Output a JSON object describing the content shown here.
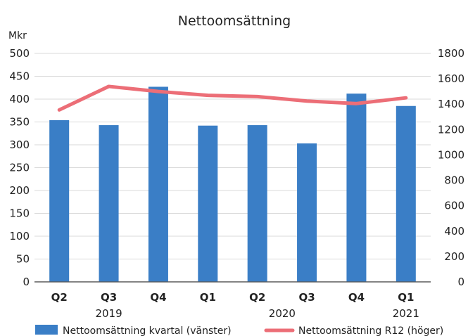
{
  "chart_data": {
    "type": "bar",
    "title": "Nettoomsättning",
    "ylabel_left": "Mkr",
    "categories": [
      "Q2",
      "Q3",
      "Q4",
      "Q1",
      "Q2",
      "Q3",
      "Q4",
      "Q1"
    ],
    "year_labels": [
      {
        "label": "2019",
        "category_index": 1
      },
      {
        "label": "2020",
        "category_index": 4.5
      },
      {
        "label": "2021",
        "category_index": 7
      }
    ],
    "ylim_left": [
      0,
      500
    ],
    "yticks_left": [
      "0",
      "50",
      "100",
      "150",
      "200",
      "250",
      "300",
      "350",
      "400",
      "450",
      "500"
    ],
    "ylim_right": [
      0,
      1800
    ],
    "yticks_right": [
      "0",
      "200",
      "400",
      "600",
      "800",
      "1000",
      "1200",
      "1400",
      "1600",
      "1800"
    ],
    "grid": true,
    "series": [
      {
        "name": "Nettoomsättning kvartal (vänster)",
        "type": "bar",
        "axis": "left",
        "color": "#3a7ec6",
        "values": [
          354,
          343,
          427,
          342,
          343,
          303,
          412,
          385
        ]
      },
      {
        "name": "Nettoomsättning R12 (höger)",
        "type": "line",
        "axis": "right",
        "color": "#ec6e77",
        "values": [
          1355,
          1540,
          1500,
          1470,
          1460,
          1425,
          1405,
          1450
        ]
      }
    ],
    "legend_position": "bottom"
  }
}
